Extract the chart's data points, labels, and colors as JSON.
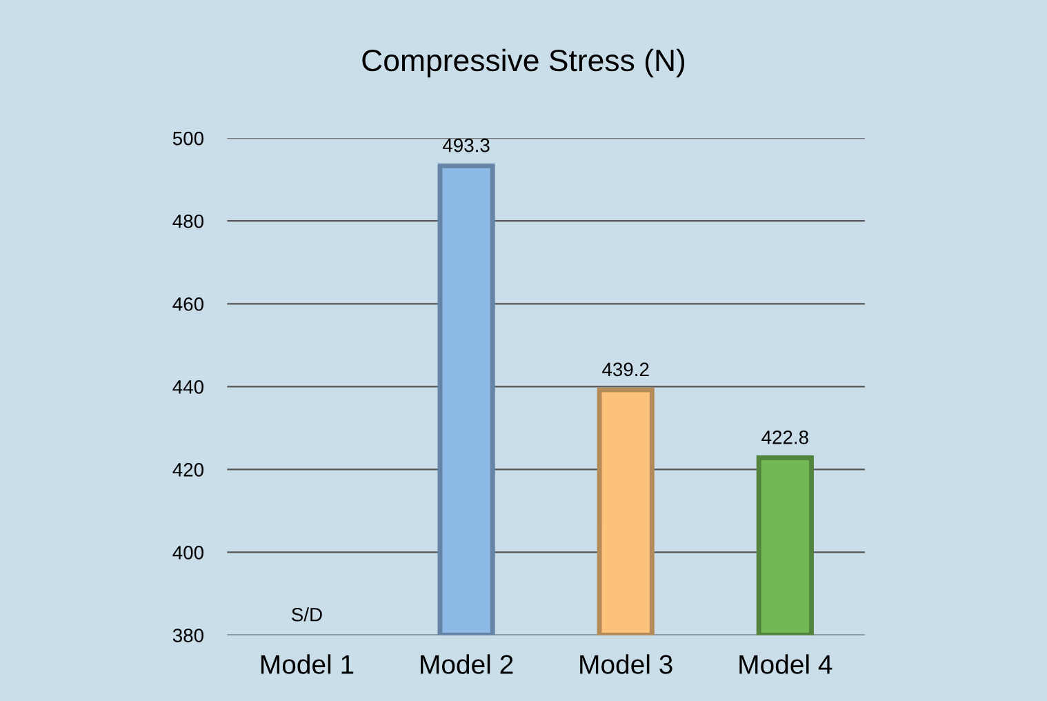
{
  "chart_data": {
    "type": "bar",
    "title": "Compressive Stress (N)",
    "categories": [
      "Model 1",
      "Model 2",
      "Model 3",
      "Model 4"
    ],
    "values": [
      null,
      493.3,
      439.2,
      422.8
    ],
    "colors": [
      "#8db9e6",
      "#8db9e6",
      "#fcc27c",
      "#72b855"
    ],
    "value_labels": [
      "S/D",
      "493.3",
      "439.2",
      "422.8"
    ],
    "ylim": [
      380,
      500
    ],
    "yticks": [
      380,
      400,
      420,
      440,
      460,
      480,
      500
    ],
    "grid": "y"
  }
}
